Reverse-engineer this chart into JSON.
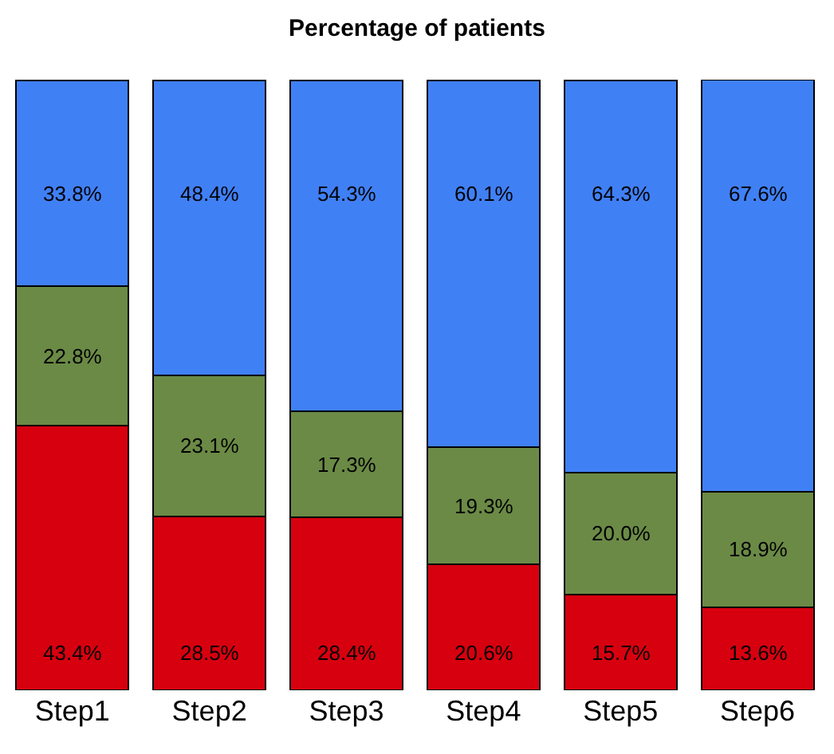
{
  "chart_data": {
    "type": "bar",
    "title": "Percentage of patients",
    "categories": [
      "Step1",
      "Step2",
      "Step3",
      "Step4",
      "Step5",
      "Step6"
    ],
    "stacked": true,
    "ylim": [
      0,
      100.1
    ],
    "series": [
      {
        "color": "#d7000f",
        "values": [
          43.4,
          28.5,
          28.4,
          20.6,
          15.7,
          13.6
        ],
        "value_labels": [
          "43.4%",
          "28.5%",
          "28.4%",
          "20.6%",
          "15.7%",
          "13.6%"
        ]
      },
      {
        "color": "#6b8a46",
        "values": [
          22.8,
          23.1,
          17.3,
          19.3,
          20.0,
          18.9
        ],
        "value_labels": [
          "22.8%",
          "23.1%",
          "17.3%",
          "19.3%",
          "20.0%",
          "18.9%"
        ]
      },
      {
        "color": "#4080f5",
        "values": [
          33.8,
          48.4,
          54.3,
          60.1,
          64.3,
          67.6
        ],
        "value_labels": [
          "33.8%",
          "48.4%",
          "54.3%",
          "60.1%",
          "64.3%",
          "67.6%"
        ]
      }
    ]
  }
}
